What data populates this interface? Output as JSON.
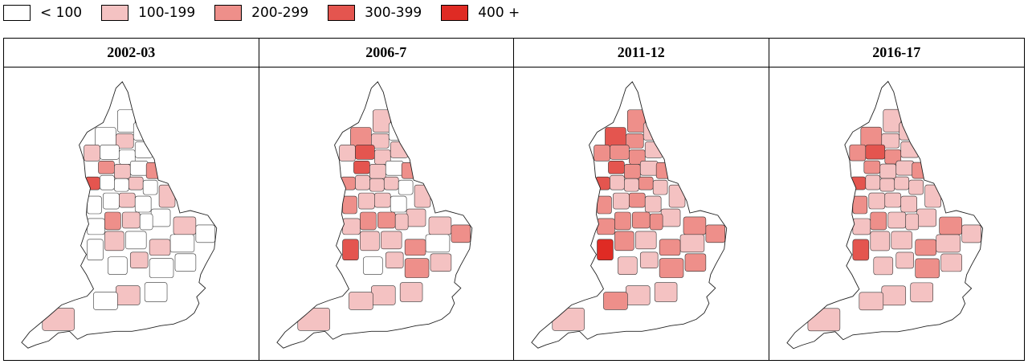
{
  "legend": [
    {
      "label": "< 100",
      "color": "#ffffff"
    },
    {
      "label": "100-199",
      "color": "#f4c2c2"
    },
    {
      "label": "200-299",
      "color": "#ee8f8a"
    },
    {
      "label": "300-399",
      "color": "#e4554f"
    },
    {
      "label": "400 +",
      "color": "#df2b24"
    }
  ],
  "panels": [
    {
      "title": "2002-03",
      "levels": [
        0,
        0,
        1,
        0,
        1,
        0,
        0,
        0,
        2,
        1,
        0,
        2,
        3,
        0,
        0,
        1,
        0,
        1,
        0,
        0,
        1,
        0,
        0,
        1,
        0,
        0,
        2,
        1,
        0,
        0,
        0,
        1,
        0,
        1,
        0,
        0,
        1,
        0,
        1,
        0,
        0,
        1
      ]
    },
    {
      "title": "2006-7",
      "levels": [
        1,
        2,
        1,
        0,
        1,
        3,
        1,
        1,
        3,
        1,
        0,
        2,
        2,
        1,
        1,
        1,
        0,
        1,
        2,
        1,
        1,
        0,
        1,
        1,
        2,
        1,
        2,
        2,
        1,
        0,
        3,
        1,
        1,
        2,
        1,
        0,
        1,
        2,
        1,
        1,
        1,
        1
      ]
    },
    {
      "title": "2011-12",
      "levels": [
        2,
        3,
        2,
        1,
        2,
        2,
        2,
        1,
        3,
        2,
        1,
        2,
        3,
        1,
        1,
        2,
        1,
        1,
        2,
        1,
        2,
        1,
        1,
        2,
        2,
        2,
        2,
        2,
        2,
        1,
        4,
        2,
        1,
        2,
        2,
        1,
        1,
        2,
        1,
        1,
        2,
        1
      ]
    },
    {
      "title": "2016-17",
      "levels": [
        1,
        2,
        1,
        1,
        2,
        3,
        2,
        1,
        2,
        1,
        1,
        2,
        3,
        1,
        1,
        1,
        1,
        1,
        2,
        1,
        1,
        1,
        1,
        2,
        1,
        1,
        2,
        1,
        1,
        1,
        3,
        1,
        1,
        2,
        1,
        1,
        1,
        2,
        1,
        1,
        1,
        1
      ]
    }
  ]
}
